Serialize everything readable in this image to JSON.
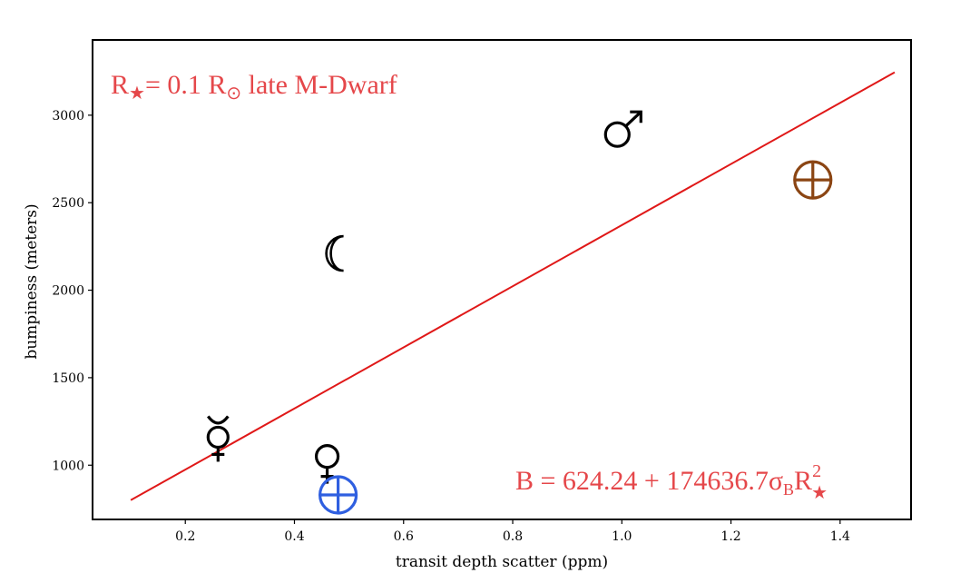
{
  "chart_data": {
    "type": "scatter",
    "xlabel": "transit depth scatter (ppm)",
    "ylabel": "bumpiness (meters)",
    "xlim": [
      0.03,
      1.53
    ],
    "ylim": [
      690,
      3430
    ],
    "x_ticks": [
      0.2,
      0.4,
      0.6,
      0.8,
      1.0,
      1.2,
      1.4
    ],
    "x_tick_labels": [
      "0.2",
      "0.4",
      "0.6",
      "0.8",
      "1.0",
      "1.2",
      "1.4"
    ],
    "y_ticks": [
      1000,
      1500,
      2000,
      2500,
      3000
    ],
    "y_tick_labels": [
      "1000",
      "1500",
      "2000",
      "2500",
      "3000"
    ],
    "grid": false,
    "legend": "none",
    "points": [
      {
        "name": "Mercury",
        "glyph": "☿",
        "x": 0.26,
        "y": 1160,
        "color": "#000000"
      },
      {
        "name": "Venus",
        "glyph": "♀",
        "x": 0.46,
        "y": 1050,
        "color": "#000000"
      },
      {
        "name": "Earth",
        "glyph": "⊕",
        "x": 0.48,
        "y": 830,
        "color": "#2f5fe0"
      },
      {
        "name": "Moon",
        "glyph": "☾",
        "x": 0.48,
        "y": 2210,
        "color": "#000000"
      },
      {
        "name": "Mars",
        "glyph": "♂",
        "x": 1.0,
        "y": 2910,
        "color": "#000000"
      },
      {
        "name": "Jupiter",
        "glyph": "⊕",
        "x": 1.35,
        "y": 2630,
        "color": "#8b4513"
      }
    ],
    "fit_line": {
      "x": [
        0.1,
        1.5
      ],
      "y": [
        800,
        3245
      ],
      "color": "#e01818"
    },
    "annotations": {
      "top_left_r": "R",
      "top_left_sub": "★",
      "top_left_rest": "= 0.1 R",
      "top_left_sun": "⊙",
      "top_left_tail": " late M-Dwarf",
      "bottom_right_main": "B = 624.24 + 174636.7σ",
      "bottom_right_sub_b": "B",
      "bottom_right_r": "R",
      "bottom_right_sup": "2",
      "bottom_right_sub_star": "★",
      "color": "#e5474a"
    }
  }
}
